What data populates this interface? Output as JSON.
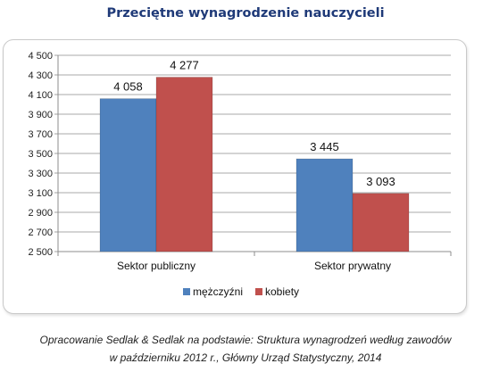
{
  "title": "Przeciętne wynagrodzenie nauczycieli",
  "caption": {
    "line1": "Opracowanie Sedlak & Sedlak na podstawie: Struktura wynagrodzeń według zawodów",
    "line2": "w październiku 2012 r., Główny Urząd Statystyczny, 2014"
  },
  "colors": {
    "men": "#4f81bd",
    "women": "#c0504d"
  },
  "chart_data": {
    "type": "bar",
    "title": "Przeciętne wynagrodzenie nauczycieli",
    "categories": [
      "Sektor publiczny",
      "Sektor prywatny"
    ],
    "series": [
      {
        "name": "mężczyźni",
        "values": [
          4058,
          3445
        ],
        "labels": [
          "4 058",
          "3 445"
        ]
      },
      {
        "name": "kobiety",
        "values": [
          4277,
          3093
        ],
        "labels": [
          "4 277",
          "3 093"
        ]
      }
    ],
    "ylim": [
      2500,
      4500
    ],
    "yticks": [
      2500,
      2700,
      2900,
      3100,
      3300,
      3500,
      3700,
      3900,
      4100,
      4300,
      4500
    ],
    "ytick_labels": [
      "2 500",
      "2 700",
      "2 900",
      "3 100",
      "3 300",
      "3 500",
      "3 700",
      "3 900",
      "4 100",
      "4 300",
      "4 500"
    ],
    "grid": true,
    "legend": "bottom"
  }
}
